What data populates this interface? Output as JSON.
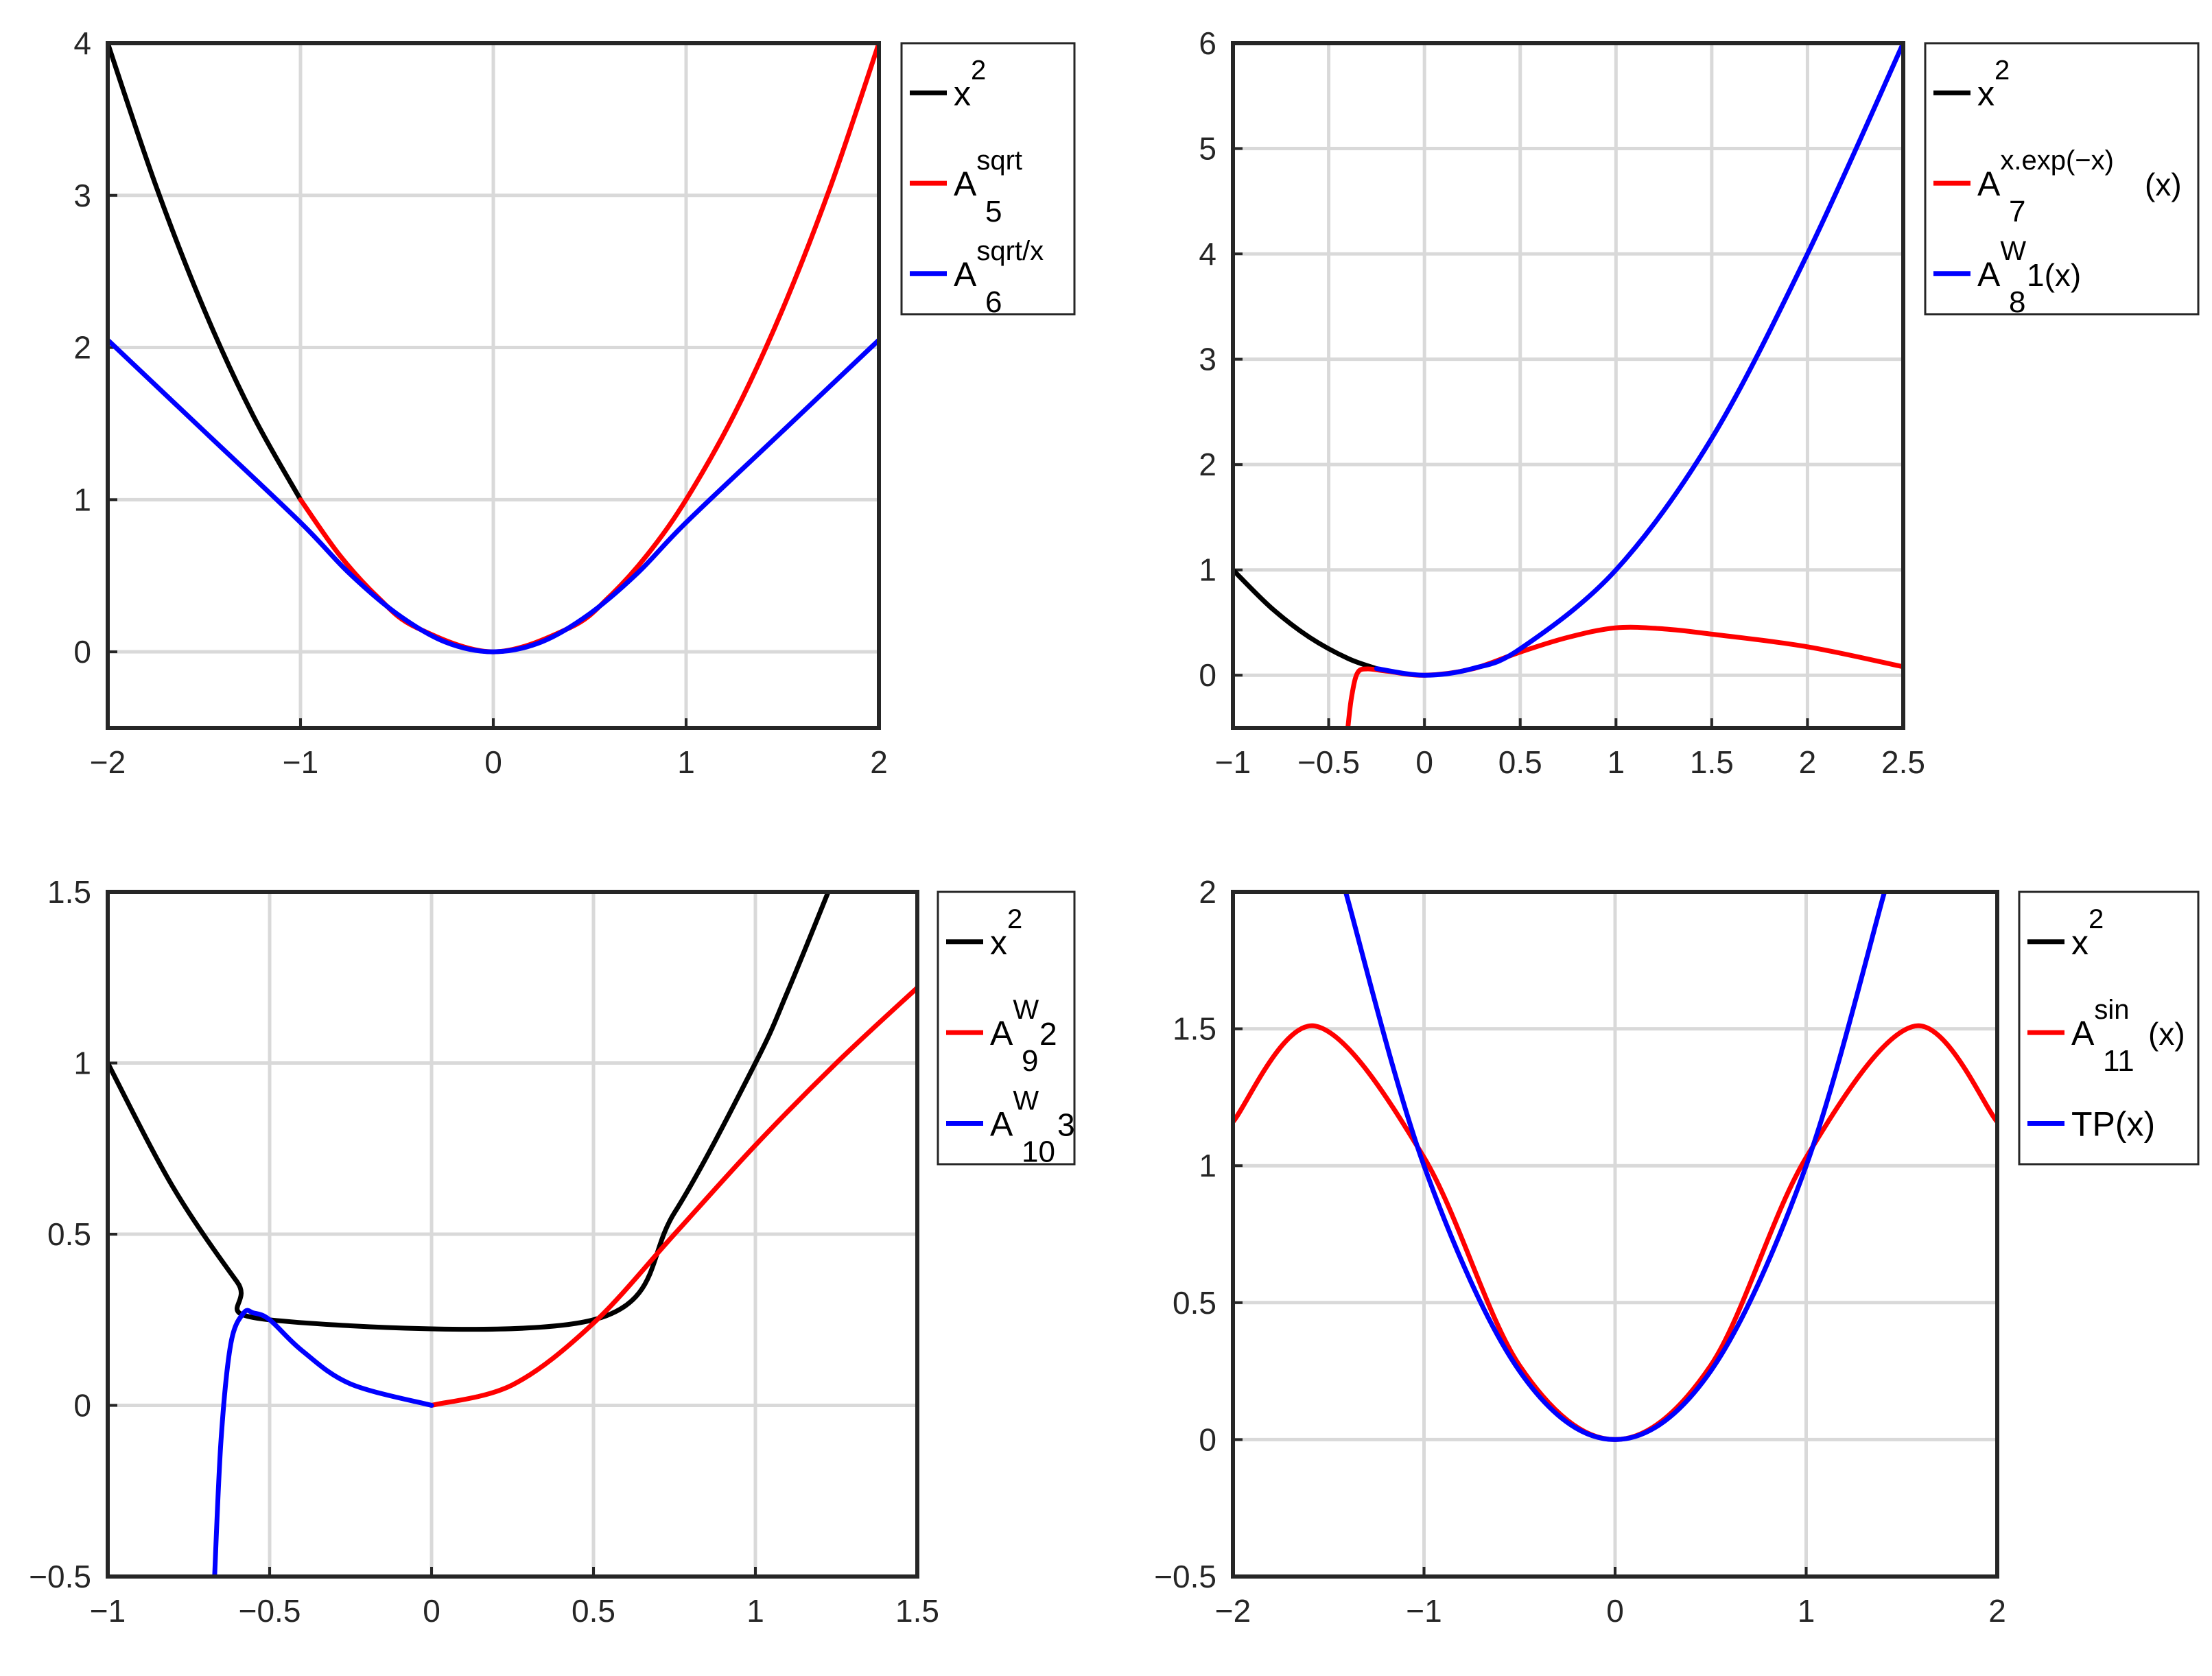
{
  "chart_data": [
    {
      "type": "line",
      "xlim": [
        -2,
        2
      ],
      "ylim": [
        -0.5,
        4
      ],
      "grid": true,
      "legend_position": "outside-right-top",
      "x_ticks": [
        "−2",
        "−1",
        "0",
        "1",
        "2"
      ],
      "y_ticks": [
        "0",
        "1",
        "2",
        "3",
        "4"
      ],
      "series": [
        {
          "name_base": "x",
          "name_sup": "2",
          "name_sub": "",
          "name_suffix": "",
          "color": "#000000",
          "x": [
            -2,
            -1.75,
            -1.5,
            -1.25,
            -1
          ],
          "y": [
            4,
            3.0625,
            2.25,
            1.5625,
            1
          ]
        },
        {
          "name_base": "A",
          "name_sup": "sqrt",
          "name_sub": "5",
          "name_suffix": "",
          "color": "#ff0000",
          "x": [
            -1,
            -0.8,
            -0.6,
            -0.4,
            0,
            0.4,
            0.6,
            0.8,
            1,
            1.25,
            1.5,
            1.75,
            2
          ],
          "y": [
            1,
            0.64,
            0.36,
            0.16,
            0,
            0.16,
            0.36,
            0.64,
            1,
            1.5625,
            2.25,
            3.0625,
            4
          ]
        },
        {
          "name_base": "A",
          "name_sup": "sqrt/x",
          "name_sub": "6",
          "name_suffix": "",
          "color": "#0000ff",
          "x": [
            -2,
            -1.5,
            -1,
            -0.75,
            -0.5,
            -0.25,
            0,
            0.25,
            0.5,
            0.75,
            1,
            1.5,
            2
          ],
          "y": [
            2.05,
            1.45,
            0.85,
            0.52,
            0.25,
            0.065,
            0,
            0.065,
            0.25,
            0.52,
            0.85,
            1.45,
            2.05
          ]
        }
      ]
    },
    {
      "type": "line",
      "xlim": [
        -1,
        2.5
      ],
      "ylim": [
        -0.5,
        6
      ],
      "grid": true,
      "legend_position": "outside-right-top",
      "x_ticks": [
        "−1",
        "−0.5",
        "0",
        "0.5",
        "1",
        "1.5",
        "2",
        "2.5"
      ],
      "y_ticks": [
        "0",
        "1",
        "2",
        "3",
        "4",
        "5",
        "6"
      ],
      "series": [
        {
          "name_base": "x",
          "name_sup": "2",
          "name_sub": "",
          "name_suffix": "",
          "color": "#000000",
          "x": [
            -1,
            -0.8,
            -0.6,
            -0.4,
            -0.25
          ],
          "y": [
            1,
            0.64,
            0.36,
            0.16,
            0.0625
          ]
        },
        {
          "name_base": "A",
          "name_sup": "x.exp(−x)",
          "name_sub": "7",
          "name_suffix": "(x)",
          "color": "#ff0000",
          "x": [
            -0.4,
            -0.38,
            -0.35,
            -0.3,
            -0.2,
            0,
            0.25,
            0.5,
            0.75,
            1,
            1.25,
            1.5,
            2,
            2.5
          ],
          "y": [
            -0.5,
            -0.2,
            0.02,
            0.06,
            0.04,
            0,
            0.06,
            0.22,
            0.36,
            0.45,
            0.44,
            0.39,
            0.27,
            0.08
          ]
        },
        {
          "name_base": "A",
          "name_sup": "W",
          "name_sub": "8",
          "name_suffix": "1(x)",
          "color": "#0000ff",
          "x": [
            -0.25,
            0,
            0.25,
            0.5,
            1,
            1.5,
            2,
            2.5
          ],
          "y": [
            0.0625,
            0,
            0.0625,
            0.25,
            1,
            2.25,
            4,
            6
          ]
        }
      ]
    },
    {
      "type": "line",
      "xlim": [
        -1,
        1.5
      ],
      "ylim": [
        -0.5,
        1.5
      ],
      "grid": true,
      "legend_position": "outside-right-top",
      "x_ticks": [
        "−1",
        "−0.5",
        "0",
        "0.5",
        "1",
        "1.5"
      ],
      "y_ticks": [
        "−0.5",
        "0",
        "0.5",
        "1",
        "1.5"
      ],
      "series": [
        {
          "name_base": "x",
          "name_sup": "2",
          "name_sub": "",
          "name_suffix": "",
          "color": "#000000",
          "x": [
            -1,
            -0.8,
            -0.6,
            -0.5,
            0.5,
            0.75,
            1,
            1.1,
            1.225
          ],
          "y": [
            1,
            0.64,
            0.36,
            0.25,
            0.25,
            0.5625,
            1,
            1.21,
            1.5
          ]
        },
        {
          "name_base": "A",
          "name_sup": "W",
          "name_sub": "9",
          "name_suffix": "2",
          "color": "#ff0000",
          "x": [
            0,
            0.25,
            0.5,
            0.75,
            1,
            1.25,
            1.5
          ],
          "y": [
            0,
            0.06,
            0.24,
            0.5,
            0.76,
            1,
            1.22
          ]
        },
        {
          "name_base": "A",
          "name_sup": "W",
          "name_sub": "10",
          "name_suffix": "3",
          "color": "#0000ff",
          "x": [
            -0.67,
            -0.65,
            -0.62,
            -0.58,
            -0.55,
            -0.5,
            -0.4,
            -0.25,
            0
          ],
          "y": [
            -0.5,
            -0.1,
            0.18,
            0.27,
            0.27,
            0.25,
            0.16,
            0.0625,
            0
          ]
        }
      ]
    },
    {
      "type": "line",
      "xlim": [
        -2,
        2
      ],
      "ylim": [
        -0.5,
        2
      ],
      "grid": true,
      "legend_position": "outside-right-top",
      "x_ticks": [
        "−2",
        "−1",
        "0",
        "1",
        "2"
      ],
      "y_ticks": [
        "−0.5",
        "0",
        "0.5",
        "1",
        "1.5",
        "2"
      ],
      "series": [
        {
          "name_base": "x",
          "name_sup": "2",
          "name_sub": "",
          "name_suffix": "",
          "color": "#000000",
          "x": [],
          "y": []
        },
        {
          "name_base": "A",
          "name_sup": "sin",
          "name_sub": "11",
          "name_suffix": "(x)",
          "color": "#ff0000",
          "x": [
            -2,
            -1.57,
            -1,
            -0.5,
            0,
            0.5,
            1,
            1.57,
            2
          ],
          "y": [
            1.16,
            1.51,
            1.03,
            0.27,
            0,
            0.27,
            1.03,
            1.51,
            1.16
          ]
        },
        {
          "name_base": "TP(x)",
          "name_sup": "",
          "name_sub": "",
          "name_suffix": "",
          "color": "#0000ff",
          "x": [
            -1.41,
            -1,
            -0.5,
            0,
            0.5,
            1,
            1.41
          ],
          "y": [
            2,
            1,
            0.25,
            0,
            0.25,
            1,
            2
          ]
        }
      ]
    }
  ]
}
